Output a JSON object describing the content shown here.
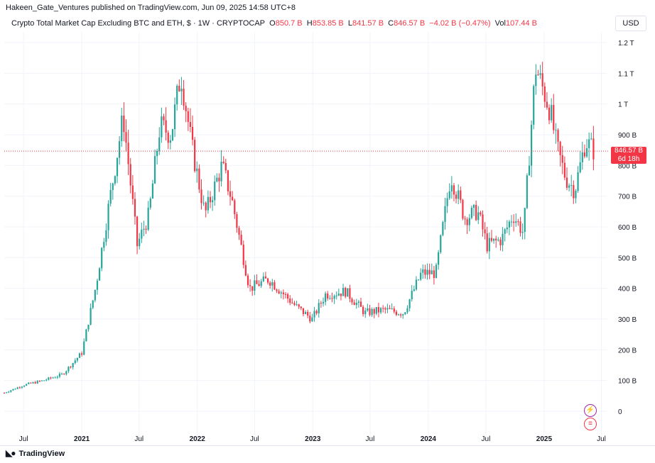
{
  "publisher": "Hakeen_Gate_Ventures published on TradingView.com, Jun 09, 2025 14:58 UTC+8",
  "legend": {
    "title": "Crypto Total Market Cap Excluding BTC and ETH, $ · 1W · CRYPTOCAP",
    "o_label": "O",
    "o_value": "850.7 B",
    "h_label": "H",
    "h_value": "853.85 B",
    "l_label": "L",
    "l_value": "841.57 B",
    "c_label": "C",
    "c_value": "846.57 B",
    "change": "−4.02 B (−0.47%)",
    "vol_label": "Vol",
    "vol_value": "107.44 B"
  },
  "currency": "USD",
  "price_tag": {
    "price": "846.57 B",
    "countdown": "6d 18h"
  },
  "branding": {
    "logo_text": "TradingView",
    "logo_icon": "tradingview-logo-icon"
  },
  "icons": {
    "events": "lightning-icon",
    "economic": "us-flag-icon"
  },
  "colors": {
    "up": "#26a69a",
    "down": "#f23645",
    "grid": "#f0f3fa",
    "text": "#131722",
    "last_price_line": "#f23645"
  },
  "chart_data": {
    "type": "candlestick",
    "interval": "1W",
    "y_axis": {
      "unit": "USD",
      "ylim": [
        0,
        1200
      ],
      "ticks": [
        0,
        100,
        200,
        300,
        400,
        500,
        600,
        700,
        800,
        900,
        1000,
        1100,
        1200
      ],
      "tick_labels": [
        "0",
        "100 B",
        "200 B",
        "300 B",
        "400 B",
        "500 B",
        "600 B",
        "700 B",
        "800 B",
        "900 B",
        "1 T",
        "1.1 T",
        "1.2 T"
      ]
    },
    "x_axis": {
      "range": [
        "2020-05-01",
        "2025-07-20"
      ],
      "ticks": [
        {
          "date": "2020-07-01",
          "label": "Jul",
          "year": false
        },
        {
          "date": "2021-01-01",
          "label": "2021",
          "year": true
        },
        {
          "date": "2021-07-01",
          "label": "Jul",
          "year": false
        },
        {
          "date": "2022-01-01",
          "label": "2022",
          "year": true
        },
        {
          "date": "2022-07-01",
          "label": "Jul",
          "year": false
        },
        {
          "date": "2023-01-01",
          "label": "2023",
          "year": true
        },
        {
          "date": "2023-07-01",
          "label": "Jul",
          "year": false
        },
        {
          "date": "2024-01-01",
          "label": "2024",
          "year": true
        },
        {
          "date": "2024-07-01",
          "label": "Jul",
          "year": false
        },
        {
          "date": "2025-01-01",
          "label": "2025",
          "year": true
        },
        {
          "date": "2025-07-01",
          "label": "Jul",
          "year": false
        }
      ]
    },
    "last_price": 846.57,
    "anchors_close": [
      [
        "2020-05-01",
        60
      ],
      [
        "2020-07-01",
        85
      ],
      [
        "2020-09-01",
        100
      ],
      [
        "2020-11-01",
        120
      ],
      [
        "2021-01-01",
        190
      ],
      [
        "2021-02-15",
        410
      ],
      [
        "2021-04-01",
        700
      ],
      [
        "2021-05-12",
        960
      ],
      [
        "2021-06-25",
        540
      ],
      [
        "2021-08-01",
        640
      ],
      [
        "2021-09-05",
        930
      ],
      [
        "2021-10-10",
        900
      ],
      [
        "2021-11-10",
        1100
      ],
      [
        "2021-12-15",
        860
      ],
      [
        "2022-01-25",
        640
      ],
      [
        "2022-03-20",
        800
      ],
      [
        "2022-04-20",
        690
      ],
      [
        "2022-06-15",
        400
      ],
      [
        "2022-08-15",
        430
      ],
      [
        "2022-11-10",
        340
      ],
      [
        "2022-12-30",
        300
      ],
      [
        "2023-02-10",
        380
      ],
      [
        "2023-04-15",
        390
      ],
      [
        "2023-06-15",
        320
      ],
      [
        "2023-08-15",
        330
      ],
      [
        "2023-10-15",
        320
      ],
      [
        "2023-12-10",
        450
      ],
      [
        "2024-01-25",
        450
      ],
      [
        "2024-03-12",
        770
      ],
      [
        "2024-04-25",
        630
      ],
      [
        "2024-06-05",
        650
      ],
      [
        "2024-07-05",
        540
      ],
      [
        "2024-08-20",
        560
      ],
      [
        "2024-09-25",
        640
      ],
      [
        "2024-10-28",
        580
      ],
      [
        "2024-12-05",
        1120
      ],
      [
        "2025-01-20",
        980
      ],
      [
        "2025-02-10",
        860
      ],
      [
        "2025-03-10",
        760
      ],
      [
        "2025-04-08",
        720
      ],
      [
        "2025-05-12",
        880
      ],
      [
        "2025-06-09",
        846.57
      ]
    ]
  }
}
